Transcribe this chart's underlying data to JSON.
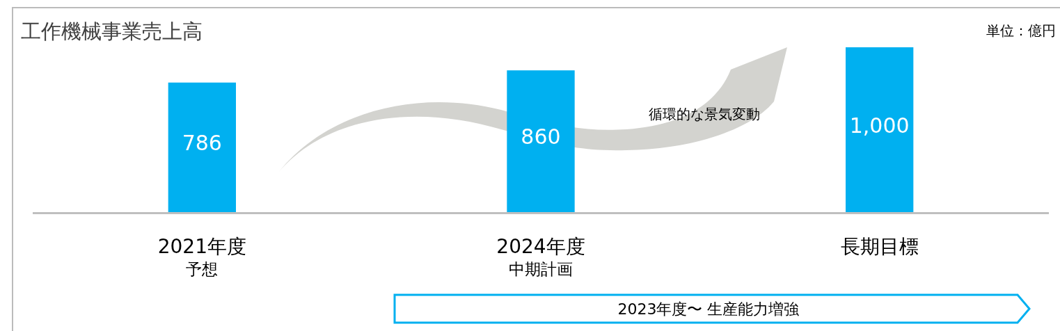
{
  "chart_data": {
    "type": "bar",
    "title": "工作機械事業売上高",
    "categories": [
      "2021年度予想",
      "2024年度中期計画",
      "長期目標"
    ],
    "values": [
      786,
      860,
      1000
    ],
    "value_labels": [
      "786",
      "860",
      "1,000"
    ],
    "color": "#00b0f0",
    "annotations": [
      "単位：億円",
      "循環的な景気変動",
      "2023年度〜 生産能力増強"
    ]
  }
}
